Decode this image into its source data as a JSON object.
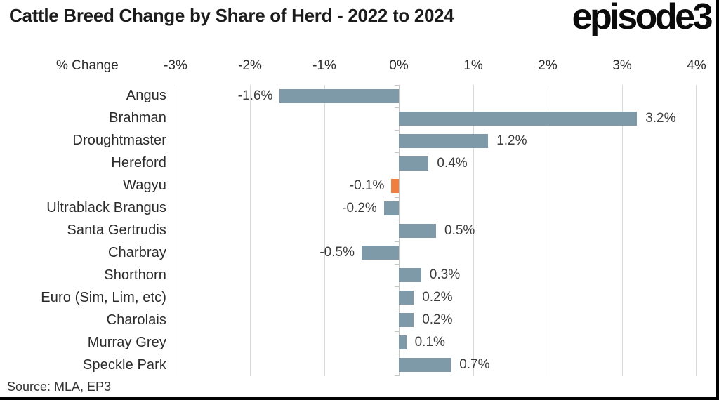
{
  "header": {
    "title": "Cattle Breed Change by Share of Herd - 2022 to 2024",
    "logo_text": "episode3"
  },
  "footer": {
    "source": "Source: MLA, EP3"
  },
  "chart_data": {
    "type": "bar",
    "orientation": "horizontal",
    "title": "Cattle Breed Change by Share of Herd - 2022 to 2024",
    "axis_label": "% Change",
    "xlim": [
      -3,
      4
    ],
    "ticks": [
      -3,
      -2,
      -1,
      0,
      1,
      2,
      3,
      4
    ],
    "tick_labels": [
      "-3%",
      "-2%",
      "-1%",
      "0%",
      "1%",
      "2%",
      "3%",
      "4%"
    ],
    "grid": "vertical",
    "categories": [
      "Angus",
      "Brahman",
      "Droughtmaster",
      "Hereford",
      "Wagyu",
      "Ultrablack Brangus",
      "Santa Gertrudis",
      "Charbray",
      "Shorthorn",
      "Euro (Sim, Lim, etc)",
      "Charolais",
      "Murray Grey",
      "Speckle Park"
    ],
    "values": [
      -1.6,
      3.2,
      1.2,
      0.4,
      -0.1,
      -0.2,
      0.5,
      -0.5,
      0.3,
      0.2,
      0.2,
      0.1,
      0.7
    ],
    "value_labels": [
      "-1.6%",
      "3.2%",
      "1.2%",
      "0.4%",
      "-0.1%",
      "-0.2%",
      "0.5%",
      "-0.5%",
      "0.3%",
      "0.2%",
      "0.2%",
      "0.1%",
      "0.7%"
    ],
    "bar_color": "#7E99A8",
    "highlight_color": "#F07E3E",
    "highlight_index": 4,
    "value_label_position": "outside-end",
    "source": "Source: MLA, EP3"
  }
}
